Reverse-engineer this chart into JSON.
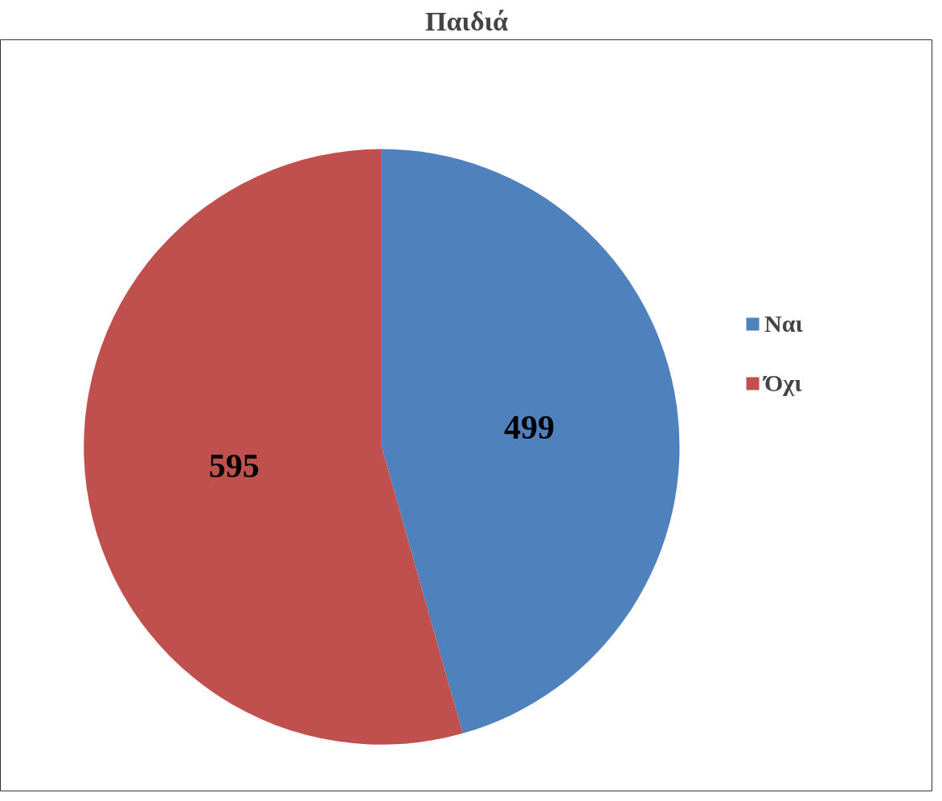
{
  "chart_data": {
    "type": "pie",
    "title": "Παιδιά",
    "categories": [
      "Ναι",
      "Όχι"
    ],
    "values": [
      499,
      595
    ],
    "colors": [
      "#4f81bd",
      "#c0504d"
    ],
    "data_labels": true,
    "legend": "right"
  }
}
